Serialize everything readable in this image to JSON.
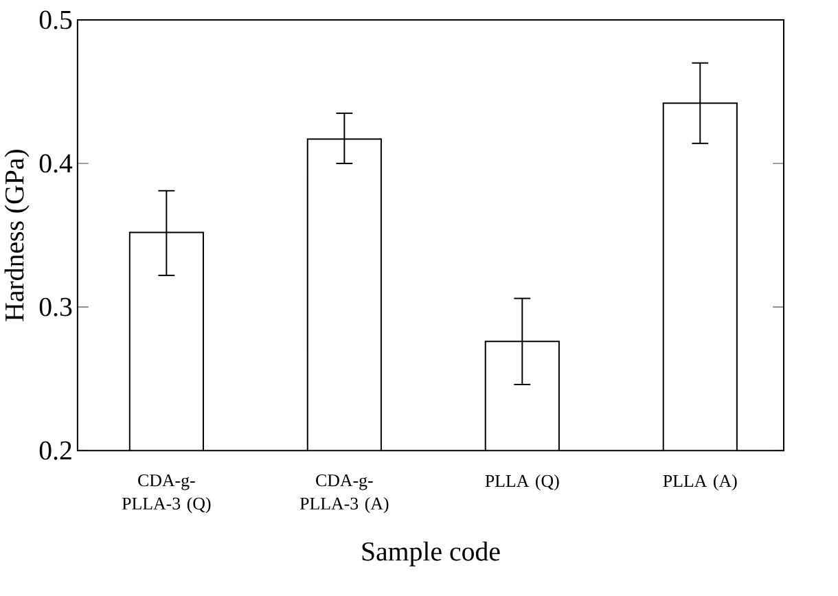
{
  "chart_data": {
    "type": "bar",
    "xlabel": "Sample code",
    "ylabel": "Hardness (GPa)",
    "categories": [
      "CDA-g-PLLA-3 (Q)",
      "CDA-g-PLLA-3 (A)",
      "PLLA (Q)",
      "PLLA (A)"
    ],
    "values": [
      0.352,
      0.417,
      0.276,
      0.442
    ],
    "errors": [
      [
        0.322,
        0.381
      ],
      [
        0.4,
        0.435
      ],
      [
        0.246,
        0.306
      ],
      [
        0.414,
        0.47
      ]
    ],
    "color": "#ffffff",
    "ylim": [
      0.2,
      0.5
    ],
    "yticks": [
      0.2,
      0.3,
      0.4,
      0.5
    ],
    "grid": false
  }
}
